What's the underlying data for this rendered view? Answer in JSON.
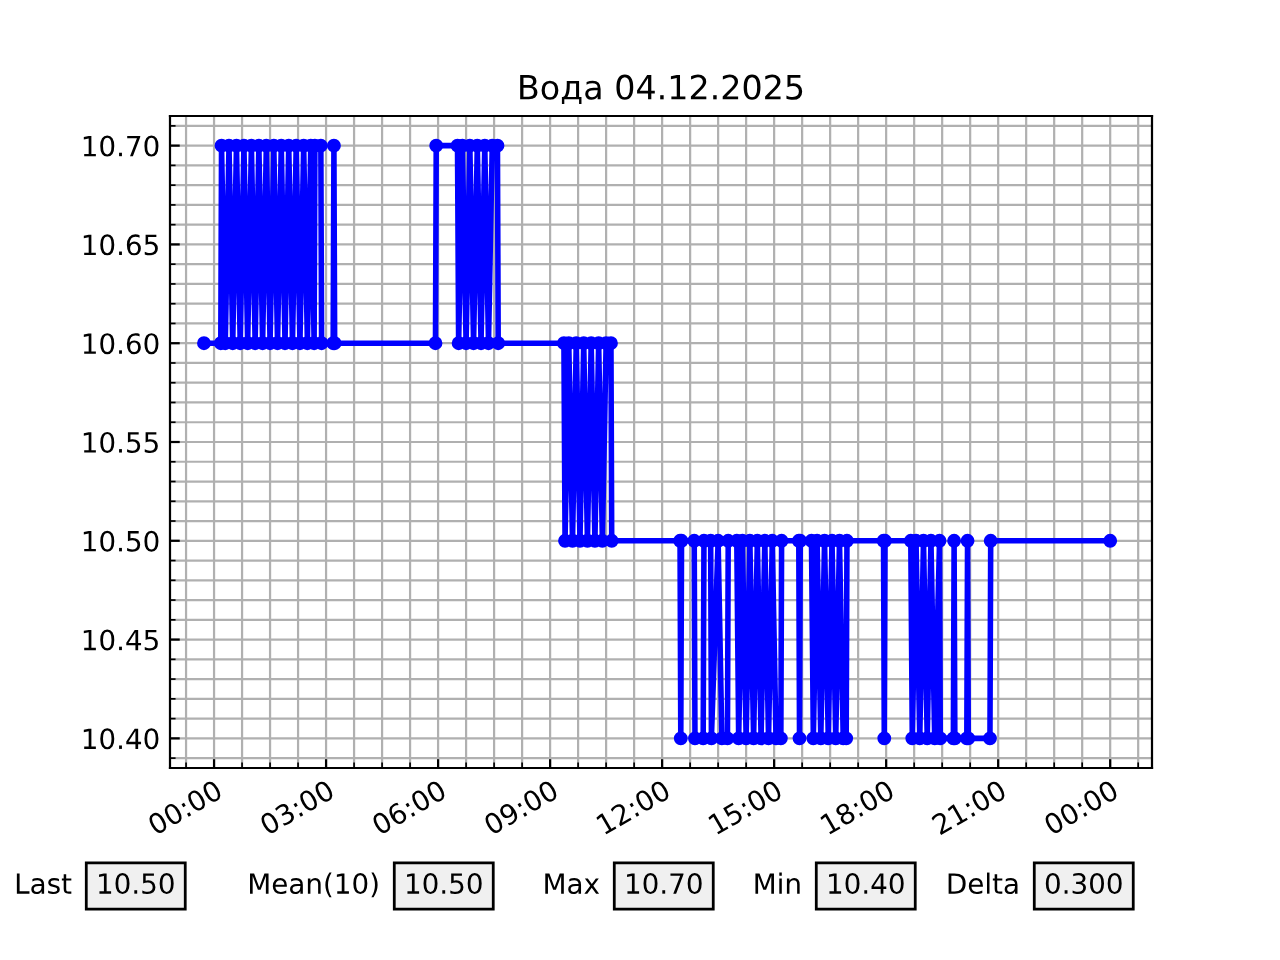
{
  "chart_data": {
    "type": "line",
    "title": "Вода 04.12.2025",
    "x": [
      -0.27,
      0.18,
      0.2,
      0.3,
      0.4,
      0.5,
      0.6,
      0.7,
      0.8,
      0.9,
      1.0,
      1.1,
      1.2,
      1.3,
      1.4,
      1.5,
      1.6,
      1.7,
      1.8,
      1.9,
      2.0,
      2.1,
      2.2,
      2.3,
      2.4,
      2.5,
      2.59,
      2.68,
      2.7,
      2.86,
      2.88,
      3.19,
      3.21,
      3.23,
      5.93,
      5.95,
      6.52,
      6.55,
      6.65,
      6.75,
      6.85,
      6.95,
      7.05,
      7.15,
      7.25,
      7.35,
      7.45,
      7.59,
      7.61,
      9.37,
      9.4,
      9.5,
      9.6,
      9.7,
      9.8,
      9.9,
      10.0,
      10.1,
      10.2,
      10.3,
      10.4,
      10.5,
      10.63,
      10.65,
      12.48,
      12.5,
      12.52,
      12.86,
      12.88,
      13.1,
      13.12,
      13.3,
      13.32,
      13.5,
      13.6,
      13.75,
      13.77,
      14.0,
      14.05,
      14.15,
      14.25,
      14.35,
      14.45,
      14.55,
      14.65,
      14.75,
      14.85,
      14.95,
      15.05,
      15.18,
      15.2,
      15.66,
      15.68,
      15.7,
      16.0,
      16.05,
      16.15,
      16.25,
      16.35,
      16.45,
      16.55,
      16.65,
      16.75,
      16.85,
      16.93,
      16.95,
      17.93,
      17.95,
      17.97,
      18.66,
      18.7,
      18.8,
      18.9,
      19.0,
      19.1,
      19.2,
      19.3,
      19.43,
      19.45,
      19.8,
      19.82,
      19.84,
      20.16,
      20.18,
      20.2,
      20.78,
      20.8,
      24.0
    ],
    "series": [
      {
        "color": "#0000ff",
        "values": [
          10.6,
          10.6,
          10.7,
          10.6,
          10.7,
          10.6,
          10.7,
          10.6,
          10.7,
          10.6,
          10.7,
          10.6,
          10.7,
          10.6,
          10.7,
          10.6,
          10.7,
          10.6,
          10.7,
          10.6,
          10.7,
          10.6,
          10.7,
          10.6,
          10.7,
          10.6,
          10.7,
          10.6,
          10.7,
          10.7,
          10.6,
          10.6,
          10.7,
          10.6,
          10.6,
          10.7,
          10.7,
          10.6,
          10.7,
          10.6,
          10.7,
          10.6,
          10.7,
          10.6,
          10.7,
          10.6,
          10.7,
          10.7,
          10.6,
          10.6,
          10.5,
          10.6,
          10.5,
          10.6,
          10.5,
          10.6,
          10.5,
          10.6,
          10.5,
          10.6,
          10.5,
          10.6,
          10.6,
          10.5,
          10.5,
          10.4,
          10.5,
          10.5,
          10.4,
          10.4,
          10.5,
          10.5,
          10.4,
          10.5,
          10.4,
          10.4,
          10.5,
          10.5,
          10.4,
          10.5,
          10.4,
          10.5,
          10.4,
          10.5,
          10.4,
          10.5,
          10.4,
          10.5,
          10.4,
          10.4,
          10.5,
          10.5,
          10.4,
          10.5,
          10.5,
          10.4,
          10.5,
          10.4,
          10.5,
          10.4,
          10.5,
          10.4,
          10.5,
          10.4,
          10.4,
          10.5,
          10.5,
          10.4,
          10.5,
          10.5,
          10.4,
          10.5,
          10.4,
          10.5,
          10.4,
          10.5,
          10.4,
          10.5,
          10.4,
          10.4,
          10.5,
          10.4,
          10.4,
          10.5,
          10.4,
          10.4,
          10.5,
          10.5
        ]
      }
    ],
    "xlim": [
      -1.18,
      25.12
    ],
    "ylim": [
      10.385,
      10.715
    ],
    "xticks": [
      {
        "value": 0,
        "label": "00:00"
      },
      {
        "value": 3,
        "label": "03:00"
      },
      {
        "value": 6,
        "label": "06:00"
      },
      {
        "value": 9,
        "label": "09:00"
      },
      {
        "value": 12,
        "label": "12:00"
      },
      {
        "value": 15,
        "label": "15:00"
      },
      {
        "value": 18,
        "label": "18:00"
      },
      {
        "value": 21,
        "label": "21:00"
      },
      {
        "value": 24,
        "label": "00:00"
      }
    ],
    "yticks": [
      {
        "value": 10.4,
        "label": "10.40"
      },
      {
        "value": 10.45,
        "label": "10.45"
      },
      {
        "value": 10.5,
        "label": "10.50"
      },
      {
        "value": 10.55,
        "label": "10.55"
      },
      {
        "value": 10.6,
        "label": "10.60"
      },
      {
        "value": 10.65,
        "label": "10.65"
      },
      {
        "value": 10.7,
        "label": "10.70"
      }
    ],
    "grid": true,
    "marker": "circle",
    "line_style": "solid",
    "legend": false,
    "annotations": [
      "Last",
      "10.50",
      "Mean(10)",
      "10.50",
      "Max",
      "10.70",
      "Min",
      "10.40",
      "Delta",
      "0.300"
    ]
  }
}
